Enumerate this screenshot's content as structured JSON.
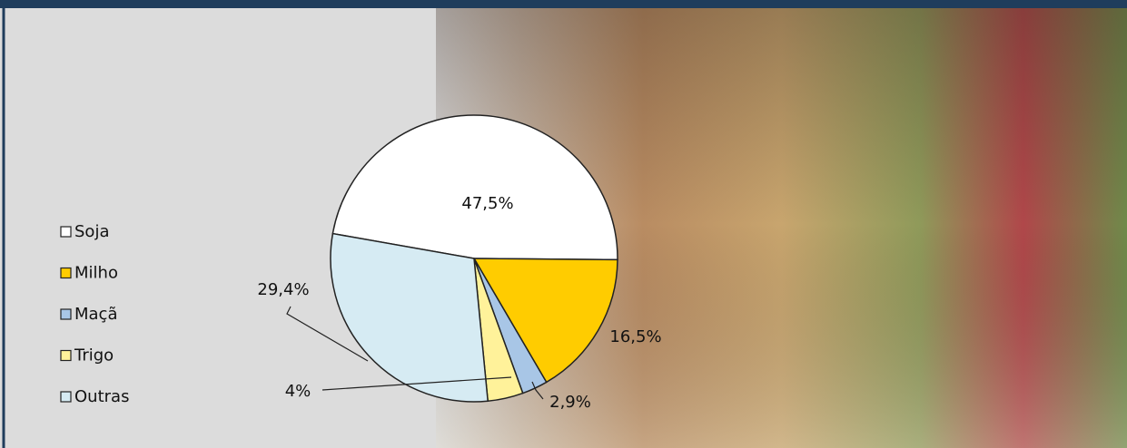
{
  "chart_data": {
    "type": "pie",
    "categories": [
      "Soja",
      "Milho",
      "Maçã",
      "Trigo",
      "Outras"
    ],
    "values": [
      47.5,
      16.5,
      2.9,
      4,
      29.4
    ],
    "value_labels": [
      "47,5%",
      "16,5%",
      "2,9%",
      "4%",
      "29,4%"
    ],
    "colors": [
      "#ffffff",
      "#ffcc00",
      "#a8c6e6",
      "#fff29a",
      "#d6ebf3"
    ]
  }
}
